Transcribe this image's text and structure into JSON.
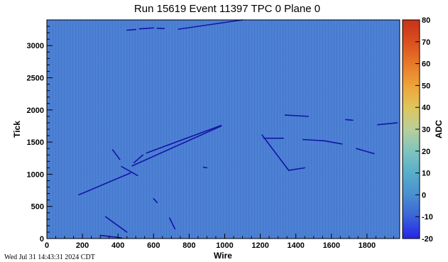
{
  "chart_data": {
    "type": "heatmap",
    "title": "Run 15619 Event 11397 TPC 0 Plane 0",
    "xlabel": "Wire",
    "ylabel": "Tick",
    "xlim": [
      0,
      1984
    ],
    "ylim": [
      0,
      3400
    ],
    "xticks": [
      0,
      200,
      400,
      600,
      800,
      1000,
      1200,
      1400,
      1600,
      1800
    ],
    "yticks": [
      0,
      500,
      1000,
      1500,
      2000,
      2500,
      3000
    ],
    "background_adc": 0,
    "colorbar": {
      "label": "ADC",
      "range": [
        -20,
        80
      ],
      "ticks": [
        -20,
        -10,
        0,
        10,
        20,
        30,
        40,
        50,
        60,
        70,
        80
      ],
      "colors": [
        "#2525e8",
        "#3a63d8",
        "#4a8fd0",
        "#57aec9",
        "#7fc4be",
        "#b8cf9a",
        "#e0c55c",
        "#eea33a",
        "#e8782a",
        "#d9501e",
        "#c8321a"
      ]
    },
    "tracks": [
      {
        "x": [
          180,
          470
        ],
        "y": [
          680,
          1020
        ]
      },
      {
        "x": [
          480,
          980
        ],
        "y": [
          1130,
          1750
        ]
      },
      {
        "x": [
          420,
          510
        ],
        "y": [
          1120,
          980
        ]
      },
      {
        "x": [
          370,
          410
        ],
        "y": [
          1380,
          1230
        ]
      },
      {
        "x": [
          490,
          540
        ],
        "y": [
          1180,
          1300
        ]
      },
      {
        "x": [
          560,
          980
        ],
        "y": [
          1330,
          1760
        ]
      },
      {
        "x": [
          330,
          450
        ],
        "y": [
          340,
          100
        ]
      },
      {
        "x": [
          300,
          420
        ],
        "y": [
          50,
          10
        ]
      },
      {
        "x": [
          600,
          620
        ],
        "y": [
          620,
          560
        ]
      },
      {
        "x": [
          690,
          720
        ],
        "y": [
          320,
          150
        ]
      },
      {
        "x": [
          1210,
          1360
        ],
        "y": [
          1610,
          1060
        ]
      },
      {
        "x": [
          1220,
          1330
        ],
        "y": [
          1560,
          1560
        ]
      },
      {
        "x": [
          1360,
          1450
        ],
        "y": [
          1060,
          1100
        ]
      },
      {
        "x": [
          1340,
          1470
        ],
        "y": [
          1920,
          1900
        ]
      },
      {
        "x": [
          1440,
          1560
        ],
        "y": [
          1540,
          1520
        ]
      },
      {
        "x": [
          1560,
          1660
        ],
        "y": [
          1520,
          1470
        ]
      },
      {
        "x": [
          1680,
          1720
        ],
        "y": [
          1850,
          1840
        ]
      },
      {
        "x": [
          1740,
          1840
        ],
        "y": [
          1400,
          1320
        ]
      },
      {
        "x": [
          1860,
          1970
        ],
        "y": [
          1770,
          1800
        ]
      },
      {
        "x": [
          880,
          900
        ],
        "y": [
          1110,
          1100
        ]
      },
      {
        "x": [
          450,
          500
        ],
        "y": [
          3240,
          3250
        ]
      },
      {
        "x": [
          520,
          600
        ],
        "y": [
          3260,
          3275
        ]
      },
      {
        "x": [
          620,
          660
        ],
        "y": [
          3270,
          3265
        ]
      },
      {
        "x": [
          740,
          1100
        ],
        "y": [
          3255,
          3400
        ]
      }
    ]
  },
  "footer": {
    "timestamp": "Wed Jul 31 14:43:31 2024 CDT"
  }
}
